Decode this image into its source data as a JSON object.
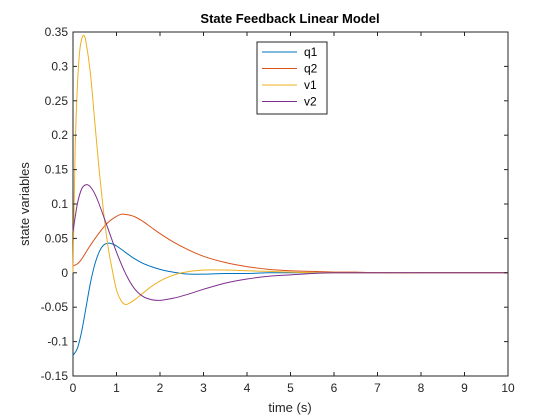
{
  "chart_data": {
    "type": "line",
    "title": "State Feedback Linear Model",
    "xlabel": "time (s)",
    "ylabel": "state variables",
    "xlim": [
      0,
      10
    ],
    "ylim": [
      -0.15,
      0.35
    ],
    "xticks": [
      0,
      1,
      2,
      3,
      4,
      5,
      6,
      7,
      8,
      9,
      10
    ],
    "xtick_labels": [
      "0",
      "1",
      "2",
      "3",
      "4",
      "5",
      "6",
      "7",
      "8",
      "9",
      "10"
    ],
    "yticks": [
      -0.15,
      -0.1,
      -0.05,
      0,
      0.05,
      0.1,
      0.15,
      0.2,
      0.25,
      0.3,
      0.35
    ],
    "ytick_labels": [
      "-0.15",
      "-0.1",
      "-0.05",
      "0",
      "0.05",
      "0.1",
      "0.15",
      "0.2",
      "0.25",
      "0.3",
      "0.35"
    ],
    "grid": false,
    "legend_position": "top-center",
    "series": [
      {
        "name": "q1",
        "color": "#0072BD",
        "x": [
          0,
          0.1,
          0.2,
          0.3,
          0.4,
          0.5,
          0.6,
          0.7,
          0.8,
          0.9,
          1.0,
          1.2,
          1.4,
          1.6,
          1.8,
          2.0,
          2.2,
          2.5,
          2.7,
          3.0,
          3.5,
          4.0,
          4.5,
          5.0,
          5.5,
          6.0,
          7.0,
          8.0,
          9.0,
          10.0
        ],
        "y": [
          -0.12,
          -0.11,
          -0.085,
          -0.05,
          -0.015,
          0.012,
          0.03,
          0.04,
          0.043,
          0.042,
          0.039,
          0.03,
          0.021,
          0.014,
          0.009,
          0.005,
          0.002,
          -0.001,
          -0.002,
          -0.002,
          -0.001,
          -0.001,
          0.0,
          0.0,
          0.0,
          0.0,
          0.0,
          0.0,
          0.0,
          0.0
        ]
      },
      {
        "name": "q2",
        "color": "#D95319",
        "x": [
          0,
          0.1,
          0.2,
          0.3,
          0.4,
          0.6,
          0.8,
          1.0,
          1.1,
          1.2,
          1.4,
          1.6,
          1.8,
          2.0,
          2.3,
          2.6,
          3.0,
          3.5,
          4.0,
          4.5,
          5.0,
          5.5,
          6.0,
          6.5,
          7.0,
          8.0,
          9.0,
          10.0
        ],
        "y": [
          0.01,
          0.013,
          0.02,
          0.03,
          0.04,
          0.058,
          0.073,
          0.082,
          0.085,
          0.085,
          0.082,
          0.075,
          0.066,
          0.057,
          0.045,
          0.035,
          0.024,
          0.015,
          0.009,
          0.005,
          0.003,
          0.002,
          0.001,
          0.001,
          0.0,
          0.0,
          0.0,
          0.0
        ]
      },
      {
        "name": "v1",
        "color": "#EDB120",
        "x": [
          0,
          0.05,
          0.1,
          0.15,
          0.2,
          0.25,
          0.3,
          0.4,
          0.5,
          0.6,
          0.7,
          0.8,
          0.9,
          1.0,
          1.1,
          1.2,
          1.3,
          1.4,
          1.6,
          1.8,
          2.0,
          2.2,
          2.5,
          3.0,
          3.5,
          4.0,
          4.5,
          5.0,
          5.5,
          6.0,
          7.0,
          8.0,
          9.0,
          10.0
        ],
        "y": [
          0.0,
          0.18,
          0.27,
          0.32,
          0.34,
          0.345,
          0.335,
          0.29,
          0.22,
          0.15,
          0.09,
          0.04,
          0.005,
          -0.025,
          -0.04,
          -0.046,
          -0.044,
          -0.04,
          -0.03,
          -0.02,
          -0.012,
          -0.006,
          0.0,
          0.004,
          0.004,
          0.003,
          0.002,
          0.001,
          0.0,
          0.0,
          0.0,
          0.0,
          0.0,
          0.0
        ]
      },
      {
        "name": "v2",
        "color": "#7E2F8E",
        "x": [
          0,
          0.1,
          0.2,
          0.3,
          0.4,
          0.5,
          0.6,
          0.8,
          1.0,
          1.2,
          1.4,
          1.6,
          1.8,
          2.0,
          2.3,
          2.6,
          3.0,
          3.5,
          4.0,
          4.5,
          5.0,
          5.5,
          6.0,
          7.0,
          8.0,
          9.0,
          10.0
        ],
        "y": [
          0.06,
          0.1,
          0.122,
          0.128,
          0.125,
          0.115,
          0.1,
          0.065,
          0.03,
          0.0,
          -0.022,
          -0.034,
          -0.039,
          -0.04,
          -0.037,
          -0.032,
          -0.024,
          -0.015,
          -0.009,
          -0.005,
          -0.003,
          -0.001,
          0.0,
          0.0,
          0.0,
          0.0,
          0.0
        ]
      }
    ]
  }
}
